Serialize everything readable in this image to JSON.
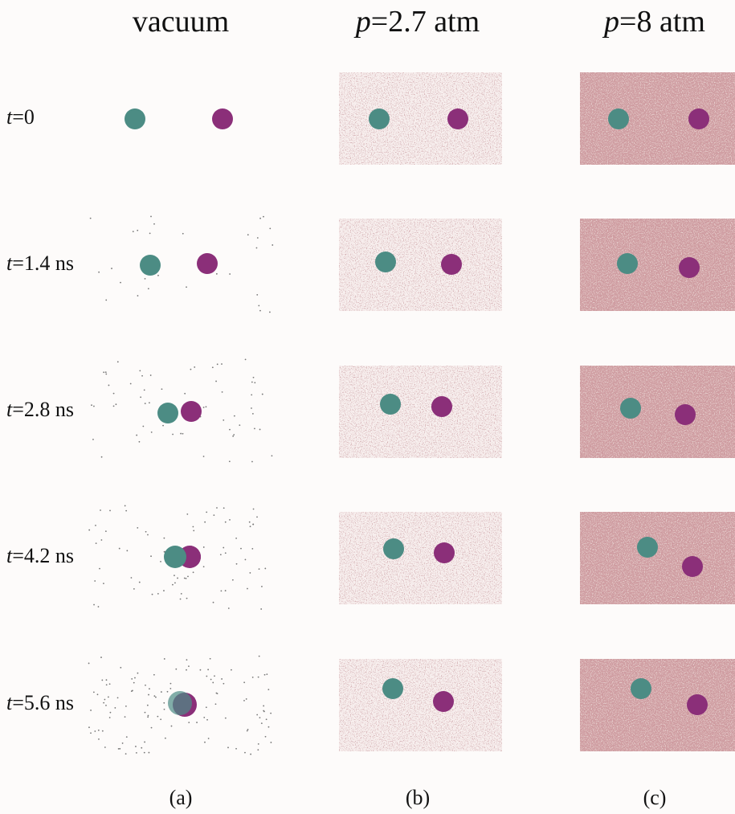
{
  "columns": [
    {
      "header": {
        "text": "vacuum"
      },
      "caption": "(a)"
    },
    {
      "header": {
        "var": "p",
        "text": "=2.7 atm"
      },
      "caption": "(b)"
    },
    {
      "header": {
        "var": "p",
        "text": "=8 atm"
      },
      "caption": "(c)"
    }
  ],
  "rows": [
    {
      "var": "t",
      "text": "=0"
    },
    {
      "var": "t",
      "text": "=1.4 ns"
    },
    {
      "var": "t",
      "text": "=2.8 ns"
    },
    {
      "var": "t",
      "text": "=4.2 ns"
    },
    {
      "var": "t",
      "text": "=5.6 ns"
    }
  ]
}
